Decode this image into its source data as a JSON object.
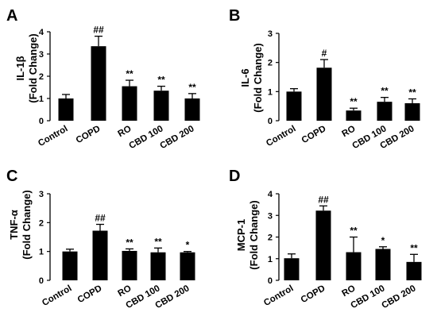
{
  "chart_data": [
    {
      "panel": "A",
      "type": "bar",
      "ylabel_line1": "IL-1β",
      "ylabel_line2": "(Fold Change)",
      "categories": [
        "Control",
        "COPD",
        "RO",
        "CBD 100",
        "CBD 200"
      ],
      "values": [
        1.0,
        3.35,
        1.55,
        1.35,
        1.0
      ],
      "errors": [
        0.18,
        0.45,
        0.27,
        0.2,
        0.22
      ],
      "annotations": [
        "",
        "##",
        "**",
        "**",
        "**"
      ],
      "yticks": [
        "0",
        "1",
        "2",
        "3",
        "4"
      ],
      "ylim": [
        0,
        4
      ]
    },
    {
      "panel": "B",
      "type": "bar",
      "ylabel_line1": "IL-6",
      "ylabel_line2": "(Fold Change)",
      "categories": [
        "Control",
        "COPD",
        "RO",
        "CBD 100",
        "CBD 200"
      ],
      "values": [
        1.0,
        1.82,
        0.35,
        0.65,
        0.6
      ],
      "errors": [
        0.1,
        0.28,
        0.08,
        0.15,
        0.15
      ],
      "annotations": [
        "",
        "#",
        "**",
        "**",
        "**"
      ],
      "yticks": [
        "0",
        "1",
        "2",
        "3"
      ],
      "ylim": [
        0,
        3
      ]
    },
    {
      "panel": "C",
      "type": "bar",
      "ylabel_line1": "TNF-α",
      "ylabel_line2": "(Fold Change)",
      "categories": [
        "Control",
        "COPD",
        "RO",
        "CBD 100",
        "CBD 200"
      ],
      "values": [
        1.0,
        1.72,
        1.02,
        0.97,
        0.97
      ],
      "errors": [
        0.08,
        0.22,
        0.07,
        0.15,
        0.03
      ],
      "annotations": [
        "",
        "##",
        "**",
        "**",
        "*"
      ],
      "yticks": [
        "0",
        "1",
        "2",
        "3"
      ],
      "ylim": [
        0,
        3
      ]
    },
    {
      "panel": "D",
      "type": "bar",
      "ylabel_line1": "MCP-1",
      "ylabel_line2": "(Fold Change)",
      "categories": [
        "Control",
        "COPD",
        "RO",
        "CBD 100",
        "CBD 200"
      ],
      "values": [
        1.02,
        3.22,
        1.3,
        1.45,
        0.85
      ],
      "errors": [
        0.2,
        0.22,
        0.7,
        0.1,
        0.35
      ],
      "annotations": [
        "",
        "##",
        "**",
        "*",
        "**"
      ],
      "yticks": [
        "0",
        "1",
        "2",
        "3",
        "4"
      ],
      "ylim": [
        0,
        4
      ]
    }
  ]
}
